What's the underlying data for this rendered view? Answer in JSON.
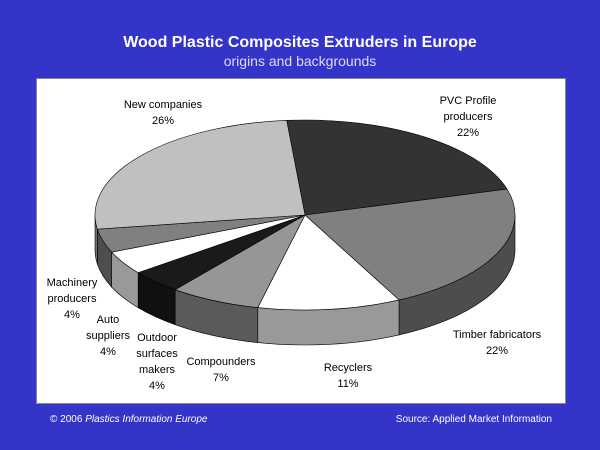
{
  "chart_data": {
    "type": "pie3d",
    "title": "Wood Plastic Composites Extruders in Europe",
    "subtitle": "origins and backgrounds",
    "categories": [
      "PVC Profile producers",
      "Timber fabricators",
      "Recyclers",
      "Compounders",
      "Outdoor surfaces makers",
      "Auto suppliers",
      "Machinery producers",
      "New companies"
    ],
    "values": [
      22,
      22,
      11,
      7,
      4,
      4,
      4,
      26
    ],
    "value_labels": [
      "22%",
      "22%",
      "11%",
      "7%",
      "4%",
      "4%",
      "4%",
      "26%"
    ],
    "colors": [
      "#333333",
      "#808080",
      "#ffffff",
      "#969696",
      "#1a1a1a",
      "#ffffff",
      "#808080",
      "#c0c0c0"
    ]
  },
  "footer": {
    "copyright": "© 2006",
    "publisher": "Plastics Information Europe",
    "source": "Source: Applied Market Information"
  }
}
